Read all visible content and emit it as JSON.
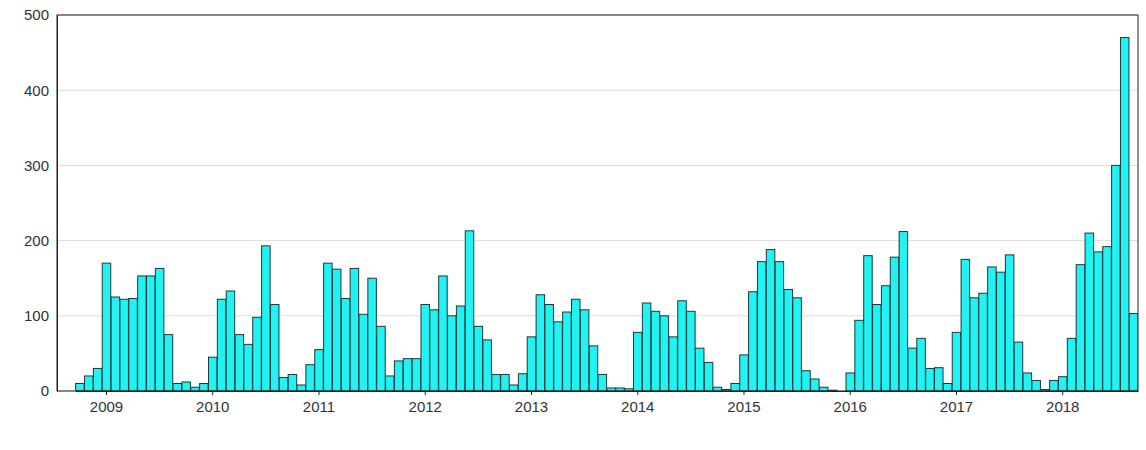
{
  "chart_data": {
    "type": "bar",
    "categories": [
      null,
      null,
      null,
      "2009",
      null,
      null,
      null,
      null,
      null,
      null,
      null,
      null,
      null,
      null,
      null,
      "2010",
      null,
      null,
      null,
      null,
      null,
      null,
      null,
      null,
      null,
      null,
      null,
      "2011",
      null,
      null,
      null,
      null,
      null,
      null,
      null,
      null,
      null,
      null,
      null,
      "2012",
      null,
      null,
      null,
      null,
      null,
      null,
      null,
      null,
      null,
      null,
      null,
      "2013",
      null,
      null,
      null,
      null,
      null,
      null,
      null,
      null,
      null,
      null,
      null,
      "2014",
      null,
      null,
      null,
      null,
      null,
      null,
      null,
      null,
      null,
      null,
      null,
      "2015",
      null,
      null,
      null,
      null,
      null,
      null,
      null,
      null,
      null,
      null,
      null,
      "2016",
      null,
      null,
      null,
      null,
      null,
      null,
      null,
      null,
      null,
      null,
      null,
      "2017",
      null,
      null,
      null,
      null,
      null,
      null,
      null,
      null,
      null,
      null,
      null,
      "2018",
      null,
      null,
      null,
      null,
      null,
      null,
      null,
      null
    ],
    "values": [
      10,
      20,
      30,
      170,
      125,
      122,
      123,
      153,
      153,
      163,
      75,
      10,
      12,
      5,
      10,
      45,
      122,
      133,
      75,
      62,
      98,
      193,
      115,
      18,
      22,
      8,
      35,
      55,
      170,
      162,
      123,
      163,
      102,
      150,
      86,
      20,
      40,
      43,
      43,
      115,
      108,
      153,
      100,
      113,
      213,
      86,
      68,
      22,
      22,
      8,
      23,
      72,
      128,
      115,
      92,
      105,
      122,
      108,
      60,
      22,
      4,
      4,
      3,
      78,
      117,
      106,
      100,
      72,
      120,
      106,
      57,
      38,
      5,
      2,
      10,
      48,
      132,
      172,
      188,
      172,
      135,
      124,
      27,
      16,
      5,
      1,
      0,
      24,
      94,
      180,
      115,
      140,
      178,
      212,
      57,
      70,
      30,
      31,
      10,
      78,
      175,
      124,
      130,
      165,
      158,
      181,
      65,
      24,
      14,
      2,
      14,
      19,
      70,
      168,
      210,
      185,
      192,
      300,
      470,
      103
    ],
    "color": "#22f2f2",
    "ylim": [
      0,
      500
    ],
    "yticks": [
      0,
      100,
      200,
      300,
      400,
      500
    ],
    "grid": true
  }
}
